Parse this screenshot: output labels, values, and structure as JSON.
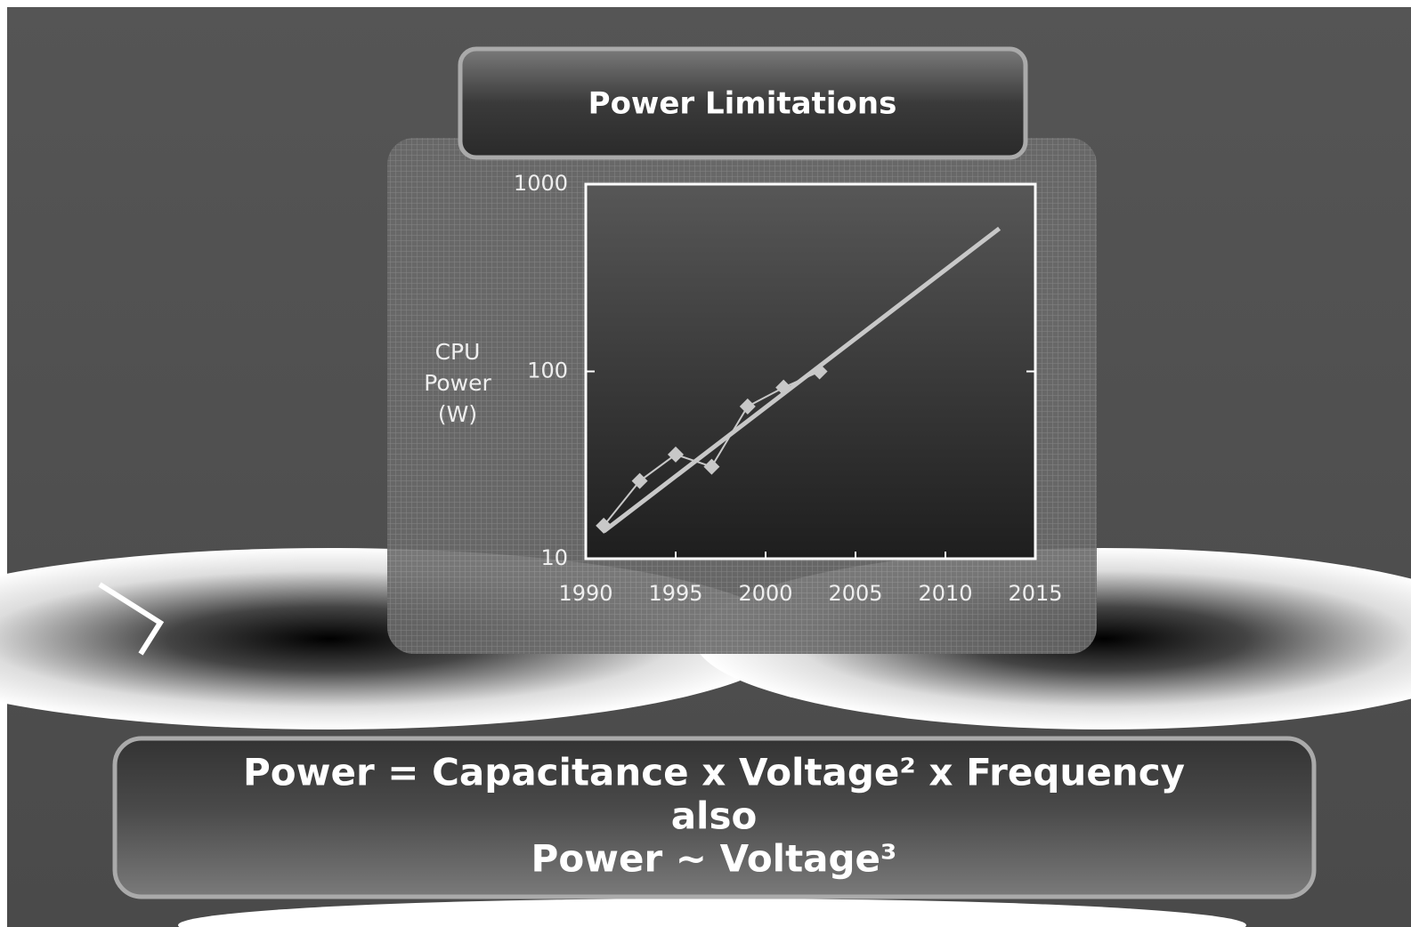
{
  "chart_data": {
    "type": "line",
    "title": "Power Limitations",
    "y_label": "CPU Power (W)",
    "series": [
      {
        "x": [
          1991,
          1993,
          1995,
          1997,
          1999,
          2001,
          2003
        ],
        "values": [
          15,
          26,
          36,
          31,
          65,
          82,
          100
        ],
        "color": "#c8c8c8",
        "marker": "diamond"
      },
      {
        "x": [
          1991,
          2013
        ],
        "values": [
          14,
          580
        ],
        "color": "#c8c8c8",
        "marker": "none"
      }
    ],
    "xlim": [
      1990,
      2015
    ],
    "xticks": [
      1990,
      1995,
      2000,
      2005,
      2010,
      2015
    ],
    "ylim": [
      10,
      1000
    ],
    "yticks": [
      10,
      100,
      1000
    ],
    "log_y": true,
    "annotations": [
      "Power = Capacitance x Voltage² x Frequency",
      "also",
      "Power ~ Voltage³"
    ]
  }
}
